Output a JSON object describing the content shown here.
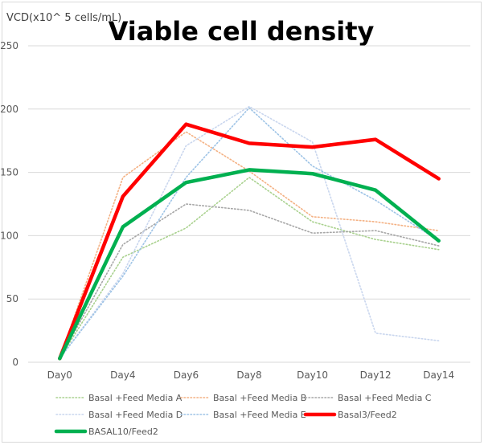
{
  "chart_data": {
    "type": "line",
    "title": "Viable cell density",
    "ylabel": "VCD(x10^ 5 cells/mL)",
    "xlabel": "",
    "categories": [
      "Day0",
      "Day4",
      "Day6",
      "Day8",
      "Day10",
      "Day12",
      "Day14"
    ],
    "ylim": [
      0,
      250
    ],
    "yticks": [
      0,
      50,
      100,
      150,
      200,
      250
    ],
    "grid": true,
    "legend_position": "bottom",
    "series": [
      {
        "name": "Basal +Feed Media A",
        "values": [
          3,
          83,
          106,
          146,
          111,
          97,
          89
        ],
        "color": "#a9d18e",
        "style": "dotted"
      },
      {
        "name": "Basal +Feed Media B",
        "values": [
          3,
          146,
          182,
          151,
          115,
          111,
          104
        ],
        "color": "#f4b183",
        "style": "dotted"
      },
      {
        "name": "Basal +Feed Media C",
        "values": [
          3,
          93,
          125,
          120,
          102,
          104,
          92
        ],
        "color": "#a6a6a6",
        "style": "dotted"
      },
      {
        "name": "Basal +Feed Media D",
        "values": [
          3,
          70,
          171,
          202,
          174,
          23,
          17
        ],
        "color": "#c9d6ee",
        "style": "dotted"
      },
      {
        "name": "Basal +Feed Media E",
        "values": [
          3,
          68,
          146,
          201,
          155,
          128,
          96
        ],
        "color": "#9dc3e6",
        "style": "dotted"
      },
      {
        "name": "Basal3/Feed2",
        "values": [
          3,
          131,
          188,
          173,
          170,
          176,
          145
        ],
        "color": "#ff0000",
        "style": "solid"
      },
      {
        "name": "BASAL10/Feed2",
        "values": [
          3,
          107,
          142,
          152,
          149,
          136,
          96
        ],
        "color": "#00b050",
        "style": "solid"
      }
    ]
  }
}
